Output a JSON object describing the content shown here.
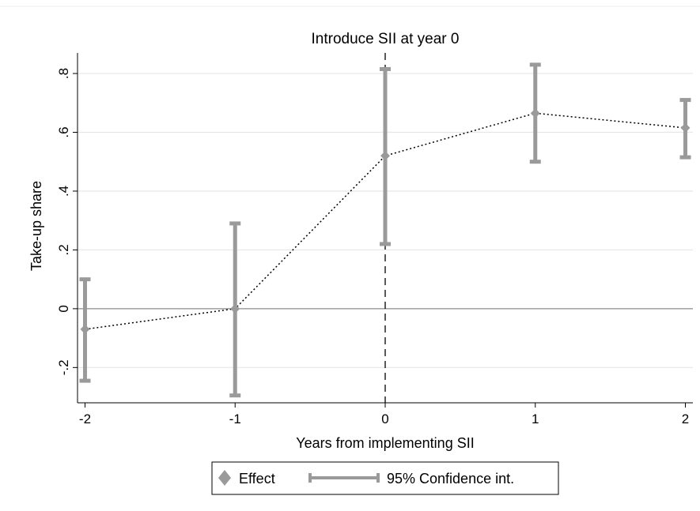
{
  "chart_data": {
    "type": "scatter",
    "title": "Introduce SII at year 0",
    "xlabel": "Years from implementing SII",
    "ylabel": "Take-up share",
    "xlim": [
      -2.05,
      2.05
    ],
    "ylim": [
      -0.32,
      0.87
    ],
    "x_ticks": [
      -2,
      -1,
      0,
      1,
      2
    ],
    "x_tick_labels": [
      "-2",
      "-1",
      "0",
      "1",
      "2"
    ],
    "y_ticks": [
      -0.2,
      0,
      0.2,
      0.4,
      0.6,
      0.8
    ],
    "y_tick_labels": [
      "-.2",
      "0",
      ".2",
      ".4",
      ".6",
      ".8"
    ],
    "grid": true,
    "reference_lines": {
      "vertical_x": 0,
      "horizontal_y": 0
    },
    "legend_position": "bottom",
    "colors": {
      "marker": "#9a9a9a",
      "ci": "#9a9a9a",
      "line": "#000000",
      "grid": "#e6e6e6"
    },
    "series": [
      {
        "name": "Effect",
        "x": [
          -2,
          -1,
          0,
          1,
          2
        ],
        "values": [
          -0.07,
          0.0,
          0.52,
          0.665,
          0.615
        ]
      },
      {
        "name": "95% Confidence int.",
        "x": [
          -2,
          -1,
          0,
          1,
          2
        ],
        "lower": [
          -0.245,
          -0.295,
          0.22,
          0.5,
          0.515
        ],
        "upper": [
          0.1,
          0.29,
          0.815,
          0.83,
          0.71
        ]
      }
    ]
  }
}
